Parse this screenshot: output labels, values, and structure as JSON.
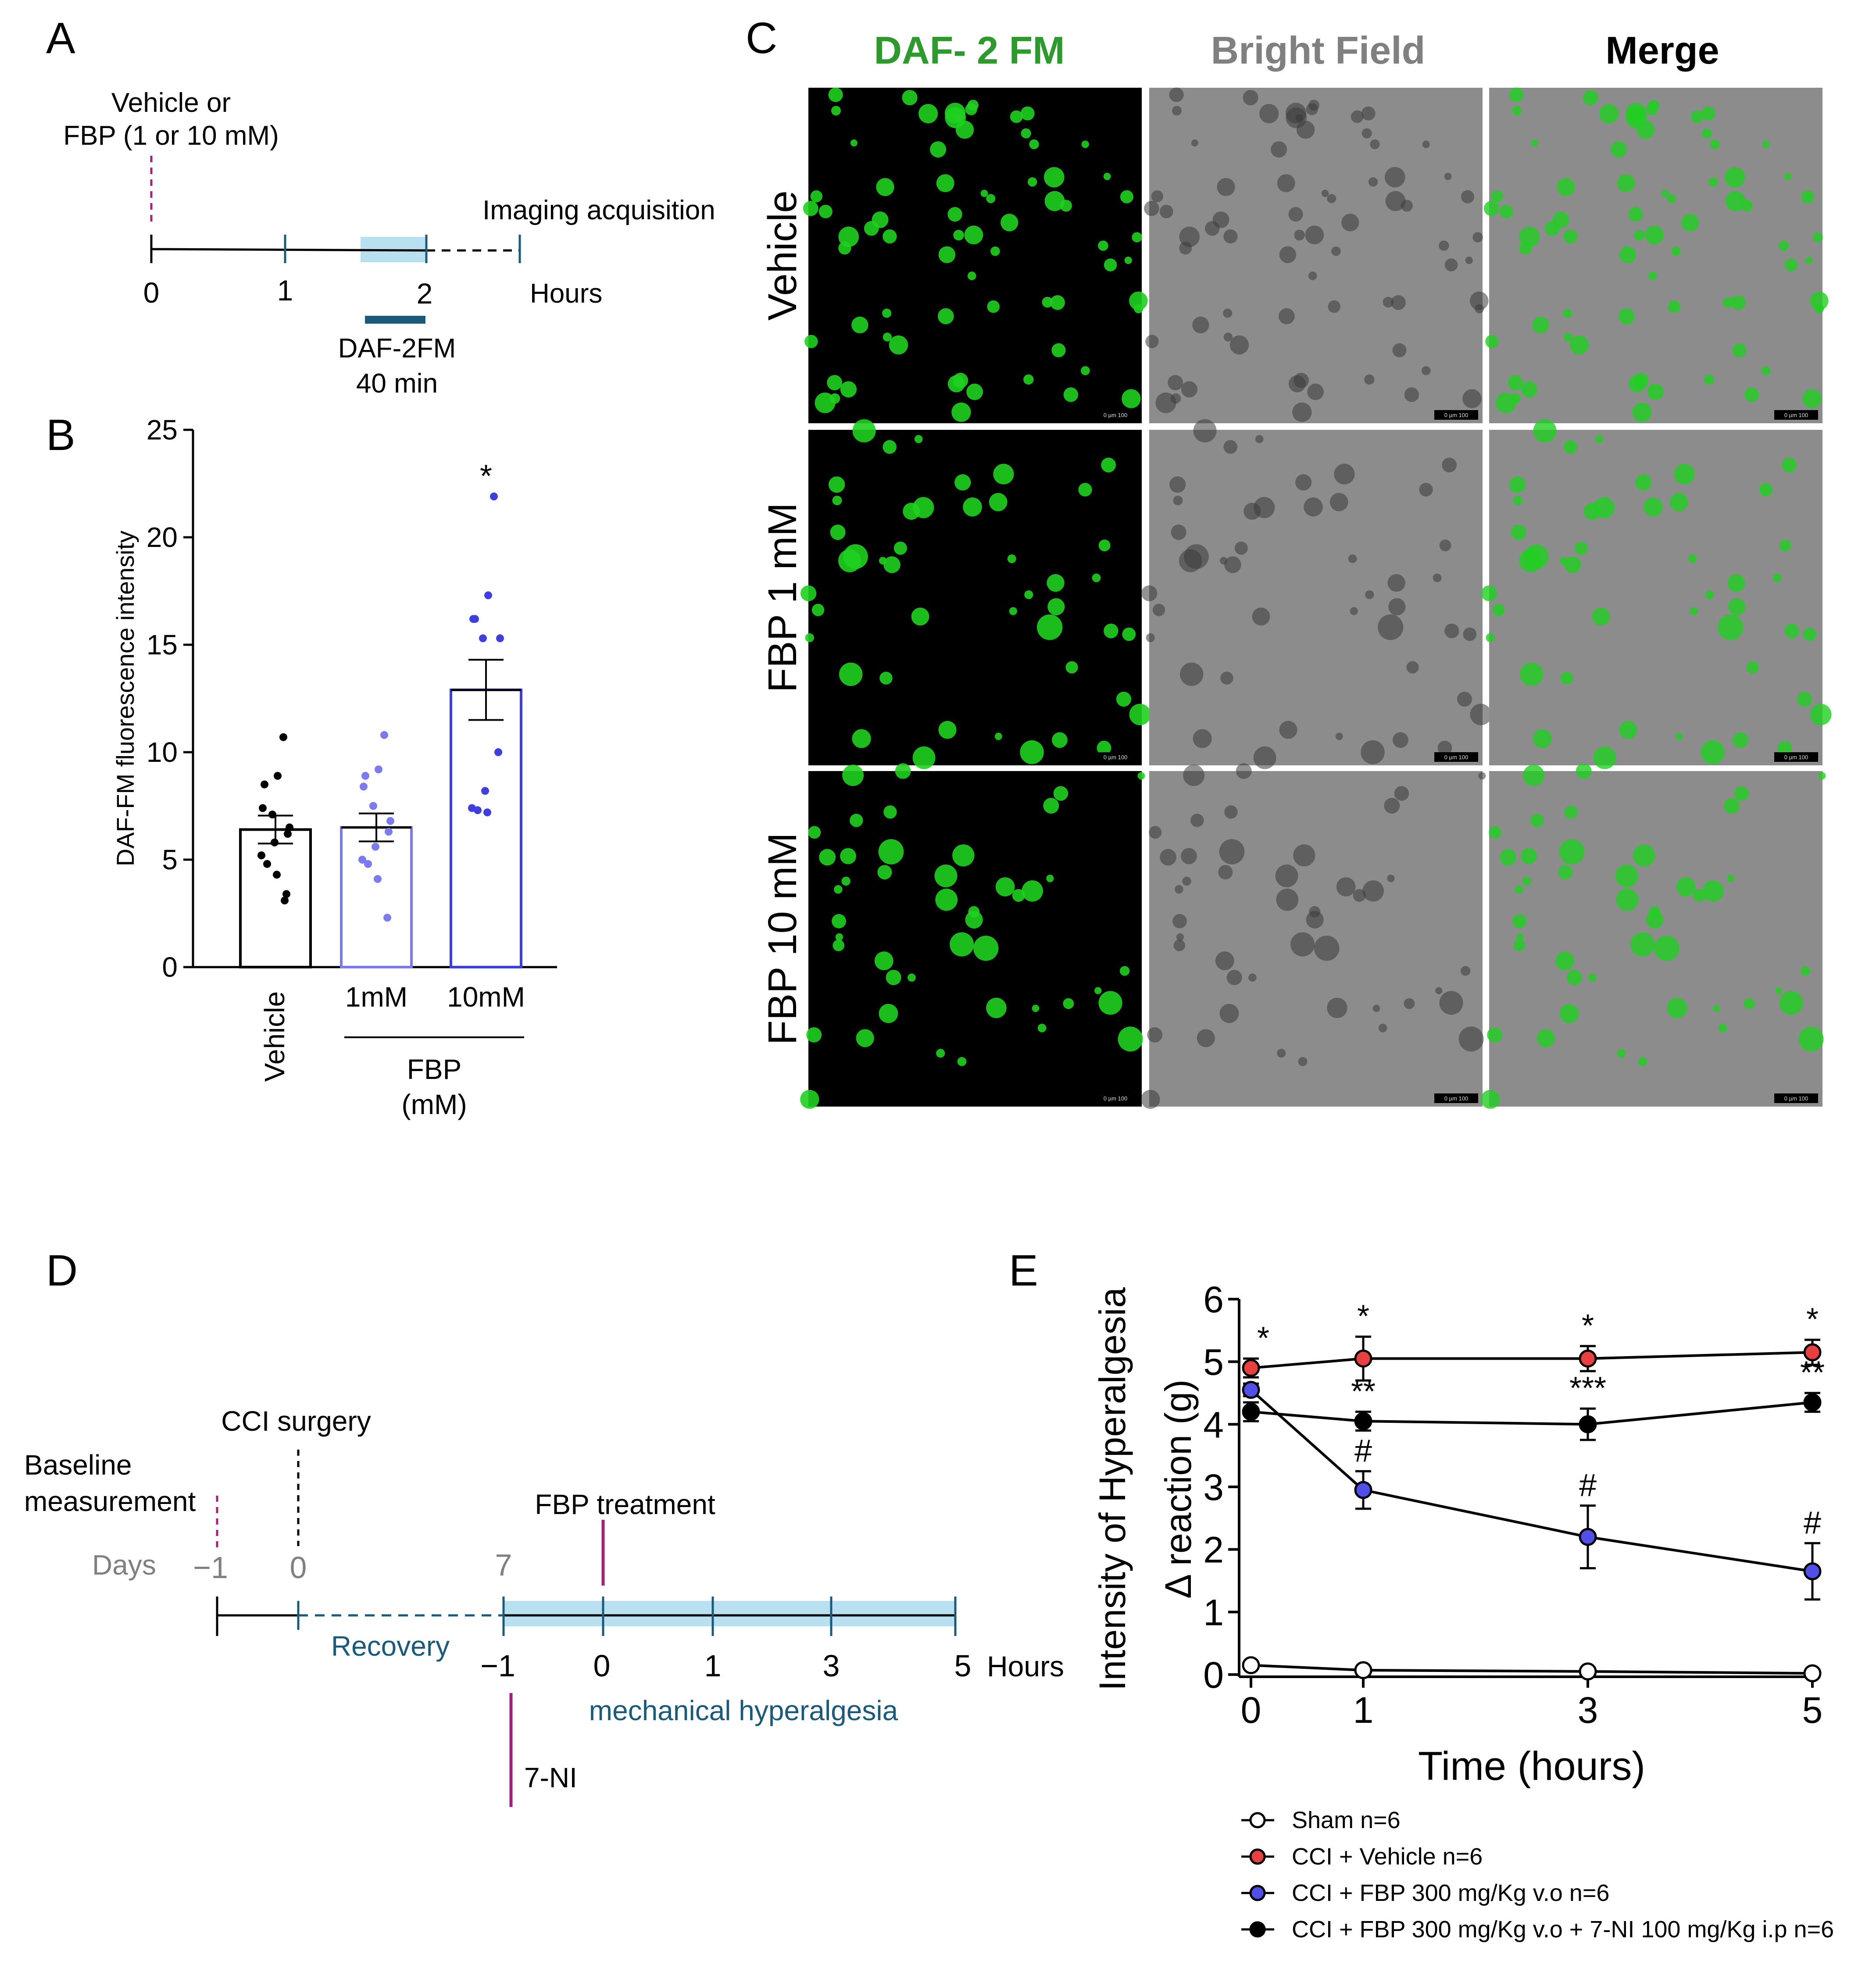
{
  "panels": {
    "A": {
      "letter": "A",
      "treatment": [
        "Vehicle or",
        "FBP (1 or 10 mM)"
      ],
      "imaging": "Imaging acquisition",
      "ticks": [
        "0",
        "1",
        "2"
      ],
      "unit": "Hours",
      "probe": [
        "DAF-2FM",
        "40 min"
      ]
    },
    "B": {
      "letter": "B",
      "ylabel": "DAF-FM fluorescence intensity",
      "yticks": [
        "0",
        "5",
        "10",
        "15",
        "20",
        "25"
      ],
      "categories": [
        "Vehicle",
        "1mM",
        "10mM"
      ],
      "group_label": [
        "FBP",
        "(mM)"
      ],
      "significance": "*"
    },
    "C": {
      "letter": "C",
      "columns": [
        "DAF- 2 FM",
        "Bright Field",
        "Merge"
      ],
      "rows": [
        "Vehicle",
        "FBP 1 mM",
        "FBP 10 mM"
      ],
      "scalebar": "0  µm  100"
    },
    "D": {
      "letter": "D",
      "surgery": "CCI surgery",
      "baseline": [
        "Baseline",
        "measurement"
      ],
      "days_label": "Days",
      "day_ticks": [
        "−1",
        "0",
        "7"
      ],
      "recovery": "Recovery",
      "treatment": "FBP treatment",
      "hour_ticks": [
        "−1",
        "0",
        "1",
        "3",
        "5"
      ],
      "hours_label": "Hours",
      "test": "mechanical hyperalgesia",
      "inhibitor": "7-NI"
    },
    "E": {
      "letter": "E",
      "ylabel_line1": "Intensity of Hyperalgesia",
      "ylabel_line2": "Δ reaction (g)",
      "xlabel": "Time (hours)",
      "yticks": [
        "0",
        "1",
        "2",
        "3",
        "4",
        "5",
        "6"
      ],
      "xticks": [
        "0",
        "1",
        "3",
        "5"
      ]
    }
  },
  "colors": {
    "timeline_blue": "#1c5a7a",
    "shade_blue": "#b9e0f0",
    "magenta": "#a0227a",
    "fbp1": "#7b7bef",
    "fbp10": "#3f3fdf",
    "red": "#e84040",
    "green": "#20d020",
    "gray_text": "#808080",
    "green_text": "#2e9a2e"
  },
  "chart_data": [
    {
      "type": "bar",
      "panel": "B",
      "categories": [
        "Vehicle",
        "1mM",
        "10mM"
      ],
      "values": [
        6.4,
        6.5,
        12.9
      ],
      "sem": [
        0.65,
        0.65,
        1.4
      ],
      "points": [
        [
          10.7,
          8.9,
          8.5,
          7.4,
          7.1,
          6.5,
          6.2,
          5.8,
          5.2,
          4.8,
          4.3,
          3.4,
          3.1
        ],
        [
          10.8,
          9.2,
          8.9,
          8.4,
          7.5,
          6.8,
          6.3,
          5.6,
          5.0,
          4.8,
          4.1,
          2.3
        ],
        [
          21.9,
          17.3,
          16.2,
          16.2,
          15.3,
          15.3,
          10.0,
          8.2,
          7.4,
          7.3,
          7.2
        ]
      ],
      "ylabel": "DAF-FM fluorescence intensity",
      "ylim": [
        0,
        25
      ],
      "yticks": [
        0,
        5,
        10,
        15,
        20,
        25
      ],
      "significance": [
        {
          "category": "10mM",
          "label": "*"
        }
      ]
    },
    {
      "type": "line",
      "panel": "E",
      "x": [
        0,
        1,
        3,
        5
      ],
      "series": [
        {
          "name": "Sham n=6",
          "values": [
            0.15,
            0.07,
            0.05,
            0.02
          ],
          "sem": [
            0.05,
            0.05,
            0.05,
            0.05
          ],
          "marker": "open"
        },
        {
          "name": "CCI + Vehicle  n=6",
          "values": [
            4.9,
            5.05,
            5.05,
            5.15
          ],
          "sem": [
            0.15,
            0.35,
            0.2,
            0.2
          ],
          "marker": "red",
          "annotations": [
            "*",
            "*",
            "*",
            "*"
          ]
        },
        {
          "name": "CCI + FBP 300 mg/Kg v.o  n=6",
          "values": [
            4.55,
            2.95,
            2.2,
            1.65
          ],
          "sem": [
            0.1,
            0.3,
            0.5,
            0.45
          ],
          "marker": "blue",
          "annotations": [
            "",
            "#",
            "#",
            "#"
          ]
        },
        {
          "name": "CCI + FBP 300 mg/Kg v.o + 7-NI 100 mg/Kg i.p  n=6",
          "values": [
            4.2,
            4.05,
            4.0,
            4.35
          ],
          "sem": [
            0.15,
            0.15,
            0.25,
            0.15
          ],
          "marker": "black",
          "annotations": [
            "",
            "**",
            "***",
            "**"
          ]
        }
      ],
      "xlabel": "Time (hours)",
      "ylabel": "Intensity of Hyperalgesia Δ reaction (g)",
      "xlim": [
        0,
        5
      ],
      "ylim": [
        0,
        6
      ],
      "legend": "bottom"
    }
  ]
}
